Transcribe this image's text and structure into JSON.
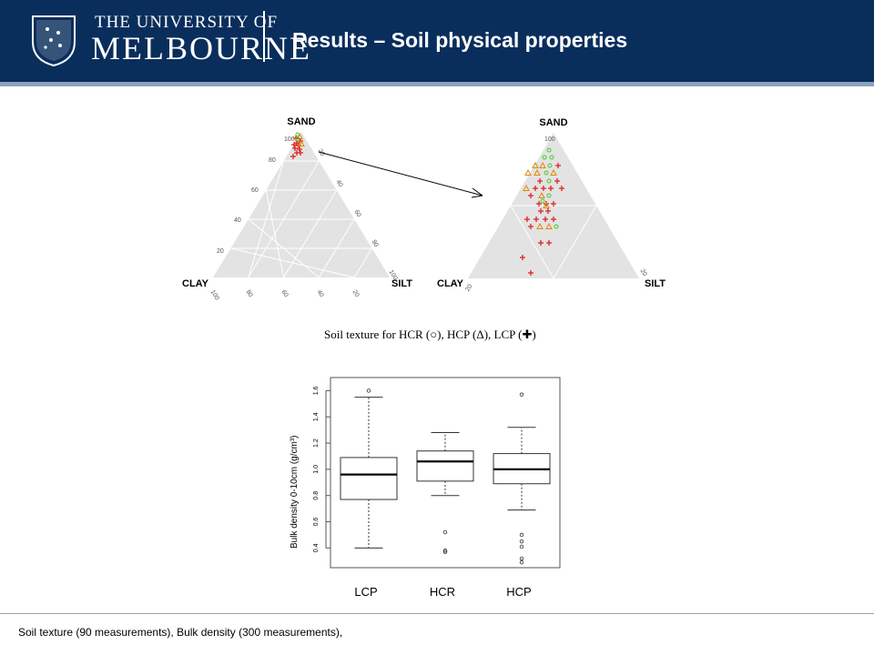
{
  "header": {
    "university_line1": "THE UNIVERSITY OF",
    "university_line2": "MELBOURNE",
    "title": "Results – Soil physical properties",
    "colors": {
      "background": "#0a2e5c",
      "accent_line": "#8ea2bc"
    }
  },
  "ternary": {
    "caption": "Soil texture for HCR (○), HCP (Δ), LCP (✚)",
    "vertex_labels": {
      "top": "SAND",
      "left": "CLAY",
      "right": "SILT"
    },
    "left_ticks": [
      "100",
      "80",
      "60",
      "40",
      "20"
    ],
    "right_ticks": [
      "20",
      "40",
      "60",
      "80",
      "100"
    ],
    "bottom_ticks": [
      "100",
      "80",
      "60",
      "40",
      "20"
    ],
    "zoom_right_tick": "20",
    "zoom_bottom_tick": "20",
    "zoom_top_tick": "100",
    "marker_colors": {
      "HCR": "#44cc22",
      "HCP": "#e08a00",
      "LCP": "#e02020"
    }
  },
  "chart_data": {
    "type": "box",
    "categories": [
      "LCP",
      "HCR",
      "HCP"
    ],
    "ylabel": "Bulk density 0-10cm (g/cm³)",
    "ylim": [
      0.25,
      1.7
    ],
    "yticks": [
      "0.4",
      "0.6",
      "0.8",
      "1.0",
      "1.2",
      "1.4",
      "1.6"
    ],
    "boxes": [
      {
        "name": "LCP",
        "min": 0.4,
        "q1": 0.77,
        "median": 0.96,
        "q3": 1.09,
        "max": 1.55,
        "outliers": [
          1.6
        ]
      },
      {
        "name": "HCR",
        "min": 0.8,
        "q1": 0.91,
        "median": 1.06,
        "q3": 1.14,
        "max": 1.28,
        "outliers": [
          0.52,
          0.38,
          0.37
        ]
      },
      {
        "name": "HCP",
        "min": 0.69,
        "q1": 0.89,
        "median": 1.0,
        "q3": 1.12,
        "max": 1.32,
        "outliers": [
          1.57,
          0.5,
          0.45,
          0.41,
          0.32,
          0.29
        ]
      }
    ]
  },
  "footer": {
    "note": "Soil texture (90 measurements), Bulk density (300 measurements),"
  }
}
